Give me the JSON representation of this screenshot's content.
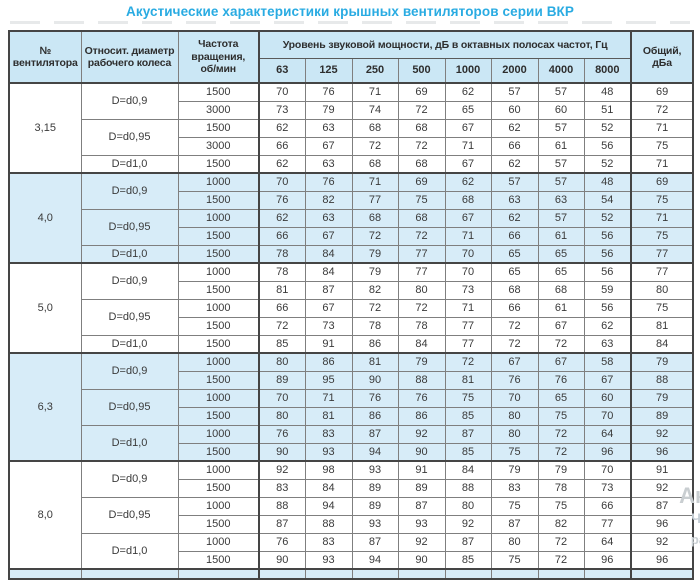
{
  "title": "Акустические характеристики крышных вентиляторов серии ВКР",
  "table": {
    "headers": {
      "fan_no": "№\nвентилятора",
      "diameter": "Относит. диаметр\nрабочего колеса",
      "speed": "Частота\nвращения,\nоб/мин",
      "band_group": "Уровень звуковой мощности, дБ в октавных полосах частот, Гц",
      "bands": [
        "63",
        "125",
        "250",
        "500",
        "1000",
        "2000",
        "4000",
        "8000"
      ],
      "total": "Общий,\nдБа"
    },
    "groups": [
      {
        "fan": "3,15",
        "shaded": false,
        "rows": [
          {
            "d": "D=d0,9",
            "dspan": 2,
            "speed": "1500",
            "values": [
              70,
              76,
              71,
              69,
              62,
              57,
              57,
              48
            ],
            "total": 69
          },
          {
            "speed": "3000",
            "values": [
              73,
              79,
              74,
              72,
              65,
              60,
              60,
              51
            ],
            "total": 72
          },
          {
            "d": "D=d0,95",
            "dspan": 2,
            "speed": "1500",
            "values": [
              62,
              63,
              68,
              68,
              67,
              62,
              57,
              52
            ],
            "total": 71
          },
          {
            "speed": "3000",
            "values": [
              66,
              67,
              72,
              72,
              71,
              66,
              61,
              56
            ],
            "total": 75
          },
          {
            "d": "D=d1,0",
            "dspan": 1,
            "speed": "1500",
            "values": [
              62,
              63,
              68,
              68,
              67,
              62,
              57,
              52
            ],
            "total": 71
          }
        ]
      },
      {
        "fan": "4,0",
        "shaded": true,
        "rows": [
          {
            "d": "D=d0,9",
            "dspan": 2,
            "speed": "1000",
            "values": [
              70,
              76,
              71,
              69,
              62,
              57,
              57,
              48
            ],
            "total": 69
          },
          {
            "speed": "1500",
            "values": [
              76,
              82,
              77,
              75,
              68,
              63,
              63,
              54
            ],
            "total": 75
          },
          {
            "d": "D=d0,95",
            "dspan": 2,
            "speed": "1000",
            "values": [
              62,
              63,
              68,
              68,
              67,
              62,
              57,
              52
            ],
            "total": 71
          },
          {
            "speed": "1500",
            "values": [
              66,
              67,
              72,
              72,
              71,
              66,
              61,
              56
            ],
            "total": 75
          },
          {
            "d": "D=d1,0",
            "dspan": 1,
            "speed": "1500",
            "values": [
              78,
              84,
              79,
              77,
              70,
              65,
              65,
              56
            ],
            "total": 77
          }
        ]
      },
      {
        "fan": "5,0",
        "shaded": false,
        "rows": [
          {
            "d": "D=d0,9",
            "dspan": 2,
            "speed": "1000",
            "values": [
              78,
              84,
              79,
              77,
              70,
              65,
              65,
              56
            ],
            "total": 77
          },
          {
            "speed": "1500",
            "values": [
              81,
              87,
              82,
              80,
              73,
              68,
              68,
              59
            ],
            "total": 80
          },
          {
            "d": "D=d0,95",
            "dspan": 2,
            "speed": "1000",
            "values": [
              66,
              67,
              72,
              72,
              71,
              66,
              61,
              56
            ],
            "total": 75
          },
          {
            "speed": "1500",
            "values": [
              72,
              73,
              78,
              78,
              77,
              72,
              67,
              62
            ],
            "total": 81
          },
          {
            "d": "D=d1,0",
            "dspan": 1,
            "speed": "1500",
            "values": [
              85,
              91,
              86,
              84,
              77,
              72,
              72,
              63
            ],
            "total": 84
          }
        ]
      },
      {
        "fan": "6,3",
        "shaded": true,
        "rows": [
          {
            "d": "D=d0,9",
            "dspan": 2,
            "speed": "1000",
            "values": [
              80,
              86,
              81,
              79,
              72,
              67,
              67,
              58
            ],
            "total": 79
          },
          {
            "speed": "1500",
            "values": [
              89,
              95,
              90,
              88,
              81,
              76,
              76,
              67
            ],
            "total": 88
          },
          {
            "d": "D=d0,95",
            "dspan": 2,
            "speed": "1000",
            "values": [
              70,
              71,
              76,
              76,
              75,
              70,
              65,
              60
            ],
            "total": 79
          },
          {
            "speed": "1500",
            "values": [
              80,
              81,
              86,
              86,
              85,
              80,
              75,
              70
            ],
            "total": 89
          },
          {
            "d": "D=d1,0",
            "dspan": 2,
            "speed": "1000",
            "values": [
              76,
              83,
              87,
              92,
              87,
              80,
              72,
              64
            ],
            "total": 92
          },
          {
            "speed": "1500",
            "values": [
              90,
              93,
              94,
              90,
              85,
              75,
              72,
              96
            ],
            "total": 96
          }
        ]
      },
      {
        "fan": "8,0",
        "shaded": false,
        "rows": [
          {
            "d": "D=d0,9",
            "dspan": 2,
            "speed": "1000",
            "values": [
              92,
              98,
              93,
              91,
              84,
              79,
              79,
              70
            ],
            "total": 91
          },
          {
            "speed": "1500",
            "values": [
              83,
              84,
              89,
              89,
              88,
              83,
              78,
              73
            ],
            "total": 92
          },
          {
            "d": "D=d0,95",
            "dspan": 2,
            "speed": "1000",
            "values": [
              88,
              94,
              89,
              87,
              80,
              75,
              75,
              66
            ],
            "total": 87
          },
          {
            "speed": "1500",
            "values": [
              87,
              88,
              93,
              93,
              92,
              87,
              82,
              77
            ],
            "total": 96
          },
          {
            "d": "D=d1,0",
            "dspan": 2,
            "speed": "1000",
            "values": [
              76,
              83,
              87,
              92,
              87,
              80,
              72,
              64
            ],
            "total": 92
          },
          {
            "speed": "1500",
            "values": [
              90,
              93,
              94,
              90,
              85,
              75,
              72,
              96
            ],
            "total": 96
          }
        ]
      }
    ],
    "partial_next_group": true
  },
  "watermark": {
    "fragments": [
      "Ак",
      "Чт",
      "ра"
    ]
  }
}
